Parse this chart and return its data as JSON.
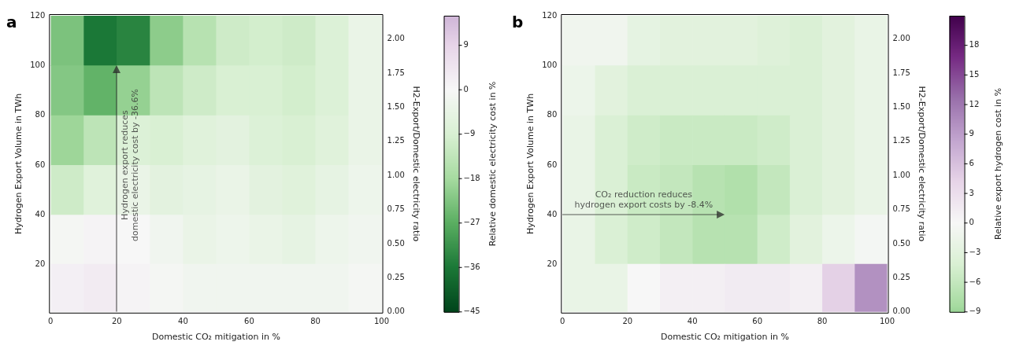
{
  "chart_data": [
    {
      "type": "heatmap",
      "annotations": [
        "a",
        "Hydrogen export reduces\ndomestic electricity cost by -36.6%"
      ],
      "xlabel": "Domestic CO₂ mitigation in %",
      "ylabel": "Hydrogen Export Volume in TWh",
      "y2label": "H2-Export/Domestic electricity ratio",
      "clabel": "Relative domestic electricity cost in %",
      "x": [
        5,
        15,
        25,
        35,
        45,
        55,
        65,
        75,
        85,
        95
      ],
      "y": [
        110,
        90,
        70,
        50,
        30,
        10.5
      ],
      "cells": [
        [
          -23,
          -36,
          -34,
          -21,
          -15,
          -11,
          -10,
          -11,
          -8,
          -4
        ],
        [
          -22,
          -26,
          -20,
          -14,
          -11,
          -9,
          -9,
          -10,
          -8,
          -4
        ],
        [
          -19,
          -14,
          -8,
          -9,
          -7,
          -6,
          -8,
          -9,
          -7,
          -4
        ],
        [
          -11,
          -7,
          -4,
          -6,
          -5,
          -4,
          -6,
          -7,
          -5,
          -3
        ],
        [
          -1,
          1,
          0,
          -2,
          -4,
          -3,
          -4,
          -5,
          -3,
          -2
        ],
        [
          2,
          3,
          1,
          -1,
          -2,
          -2,
          -2,
          -2,
          -2,
          -1
        ]
      ],
      "xlim": [
        0,
        100
      ],
      "xticks": [
        0,
        20,
        40,
        60,
        80,
        100
      ],
      "ylim": [
        1,
        120
      ],
      "yticks": [
        20,
        40,
        60,
        80,
        100,
        120
      ],
      "y2lim": [
        0,
        2.17
      ],
      "y2ticks": [
        {
          "value": 0,
          "label": "0.00"
        },
        {
          "value": 0.25,
          "label": "0.25"
        },
        {
          "value": 0.5,
          "label": "0.50"
        },
        {
          "value": 0.75,
          "label": "0.75"
        },
        {
          "value": 1,
          "label": "1.00"
        },
        {
          "value": 1.25,
          "label": "1.25"
        },
        {
          "value": 1.5,
          "label": "1.50"
        },
        {
          "value": 1.75,
          "label": "1.75"
        },
        {
          "value": 2,
          "label": "2.00"
        }
      ],
      "clim": [
        -45,
        15
      ],
      "cticks": [
        {
          "value": -45,
          "label": "−45"
        },
        {
          "value": -36,
          "label": "−36"
        },
        {
          "value": -27,
          "label": "−27"
        },
        {
          "value": -18,
          "label": "−18"
        },
        {
          "value": -9,
          "label": "−9"
        },
        0,
        9
      ]
    },
    {
      "type": "heatmap",
      "annotations": [
        "b",
        "CO₂ reduction reduces\nhydrogen export costs by -8.4%"
      ],
      "xlabel": "Domestic CO₂ mitigation in %",
      "ylabel": "Hydrogen Export Volume in TWh",
      "y2label": "H2-Export/Domestic electricity ratio",
      "clabel": "Relative export hydrogen cost in %",
      "x": [
        5,
        15,
        25,
        35,
        45,
        55,
        65,
        75,
        85,
        95
      ],
      "y": [
        110,
        90,
        70,
        50,
        30,
        10.5
      ],
      "cells": [
        [
          -1,
          -1,
          -2.5,
          -3,
          -3,
          -3,
          -3.5,
          -4,
          -3,
          -2
        ],
        [
          -1.5,
          -3,
          -4,
          -4,
          -4,
          -4,
          -4,
          -4,
          -3,
          -2
        ],
        [
          -2,
          -4,
          -5,
          -5.5,
          -5.5,
          -5.5,
          -5,
          -4,
          -3,
          -2
        ],
        [
          -2,
          -4,
          -5.5,
          -6,
          -7,
          -7.5,
          -6,
          -4,
          -3,
          -2
        ],
        [
          -2,
          -4,
          -5,
          -6,
          -7,
          -7,
          -5,
          -3,
          -1.5,
          -0.5
        ],
        [
          -2,
          -2,
          0,
          1,
          1,
          1.5,
          1.5,
          1,
          4.5,
          10
        ]
      ],
      "xlim": [
        0,
        100
      ],
      "xticks": [
        0,
        20,
        40,
        60,
        80,
        100
      ],
      "ylim": [
        1,
        120
      ],
      "yticks": [
        20,
        40,
        60,
        80,
        100,
        120
      ],
      "y2lim": [
        0,
        2.17
      ],
      "y2ticks": [
        {
          "value": 0,
          "label": "0.00"
        },
        {
          "value": 0.25,
          "label": "0.25"
        },
        {
          "value": 0.5,
          "label": "0.50"
        },
        {
          "value": 0.75,
          "label": "0.75"
        },
        {
          "value": 1,
          "label": "1.00"
        },
        {
          "value": 1.25,
          "label": "1.25"
        },
        {
          "value": 1.5,
          "label": "1.50"
        },
        {
          "value": 1.75,
          "label": "1.75"
        },
        {
          "value": 2,
          "label": "2.00"
        }
      ],
      "clim": [
        -9,
        21
      ],
      "cticks": [
        {
          "value": -9,
          "label": "−9"
        },
        {
          "value": -6,
          "label": "−6"
        },
        {
          "value": -3,
          "label": "−3"
        },
        0,
        3,
        6,
        9,
        12,
        15,
        18
      ]
    }
  ]
}
